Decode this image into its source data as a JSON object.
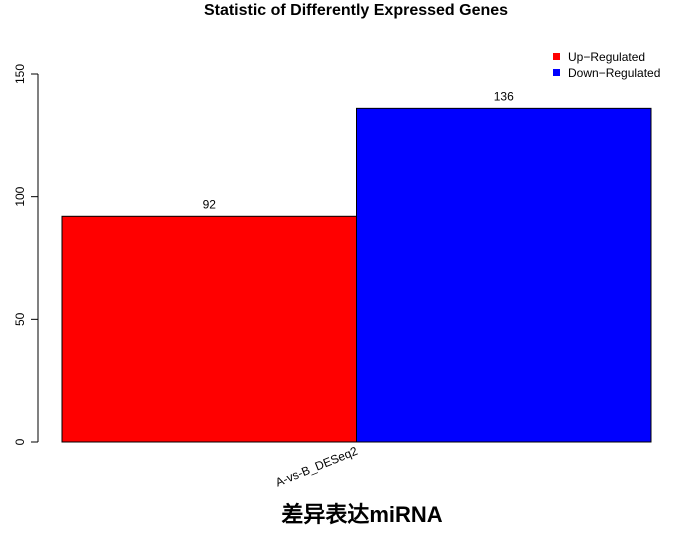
{
  "chart_data": {
    "type": "bar",
    "title": "Statistic of Differently Expressed Genes",
    "xlabel": "差异表达miRNA",
    "ylabel": "",
    "categories": [
      "A-vs-B_DESeq2"
    ],
    "series": [
      {
        "name": "Up-Regulated",
        "values": [
          92
        ],
        "color": "#ff0000"
      },
      {
        "name": "Down-Regulated",
        "values": [
          136
        ],
        "color": "#0000ff"
      }
    ],
    "ylim": [
      0,
      150
    ],
    "yticks": [
      0,
      50,
      100,
      150
    ],
    "grid": false,
    "legend_position": "top-right"
  }
}
